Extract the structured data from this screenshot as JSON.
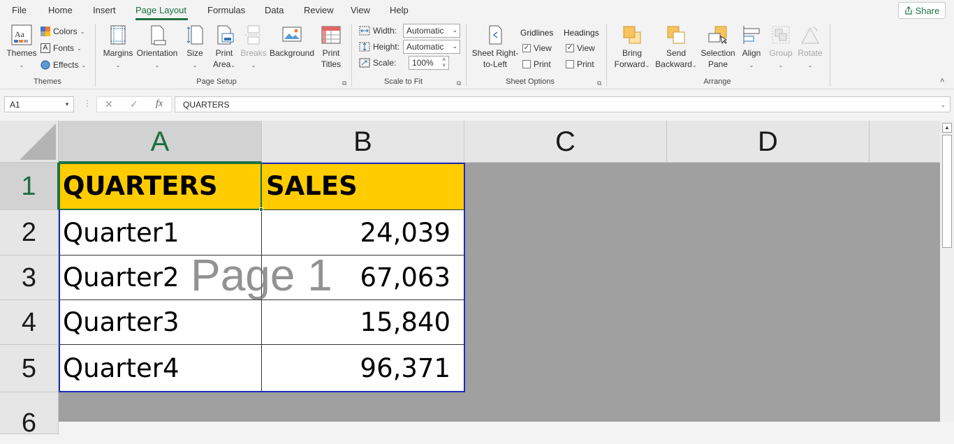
{
  "menu": {
    "tabs": [
      "File",
      "Home",
      "Insert",
      "Page Layout",
      "Formulas",
      "Data",
      "Review",
      "View",
      "Help"
    ],
    "active_tab": "Page Layout",
    "share_label": "Share"
  },
  "ribbon": {
    "themes": {
      "themes_label": "Themes",
      "colors_label": "Colors",
      "fonts_label": "Fonts",
      "effects_label": "Effects",
      "group_label": "Themes"
    },
    "page_setup": {
      "margins": "Margins",
      "orientation": "Orientation",
      "size": "Size",
      "print_area_1": "Print",
      "print_area_2": "Area",
      "breaks": "Breaks",
      "background": "Background",
      "print_titles_1": "Print",
      "print_titles_2": "Titles",
      "group_label": "Page Setup"
    },
    "scale_to_fit": {
      "width_label": "Width:",
      "width_value": "Automatic",
      "height_label": "Height:",
      "height_value": "Automatic",
      "scale_label": "Scale:",
      "scale_value": "100%",
      "group_label": "Scale to Fit"
    },
    "sheet_options": {
      "sheet_rtl_1": "Sheet Right-",
      "sheet_rtl_2": "to-Left",
      "gridlines_label": "Gridlines",
      "gridlines_view": "View",
      "gridlines_print": "Print",
      "headings_label": "Headings",
      "headings_view": "View",
      "headings_print": "Print",
      "group_label": "Sheet Options"
    },
    "arrange": {
      "bring_forward_1": "Bring",
      "bring_forward_2": "Forward",
      "send_backward_1": "Send",
      "send_backward_2": "Backward",
      "selection_pane_1": "Selection",
      "selection_pane_2": "Pane",
      "align": "Align",
      "group": "Group",
      "rotate": "Rotate",
      "group_label": "Arrange"
    }
  },
  "formula_bar": {
    "name_box": "A1",
    "cancel_glyph": "✕",
    "enter_glyph": "✓",
    "fx_glyph": "fx",
    "formula": "QUARTERS"
  },
  "sheet": {
    "columns": [
      "A",
      "B",
      "C",
      "D"
    ],
    "rows": [
      "1",
      "2",
      "3",
      "4",
      "5",
      "6"
    ],
    "header": [
      "QUARTERS",
      "SALES"
    ],
    "data": [
      [
        "Quarter1",
        "24,039"
      ],
      [
        "Quarter2",
        "67,063"
      ],
      [
        "Quarter3",
        "15,840"
      ],
      [
        "Quarter4",
        "96,371"
      ]
    ],
    "watermark": "Page 1"
  },
  "colors": {
    "accent": "#1e7145",
    "header_fill": "#ffcc00",
    "print_area_border": "#1f2bb5",
    "outside_area": "#a0a0a0"
  }
}
